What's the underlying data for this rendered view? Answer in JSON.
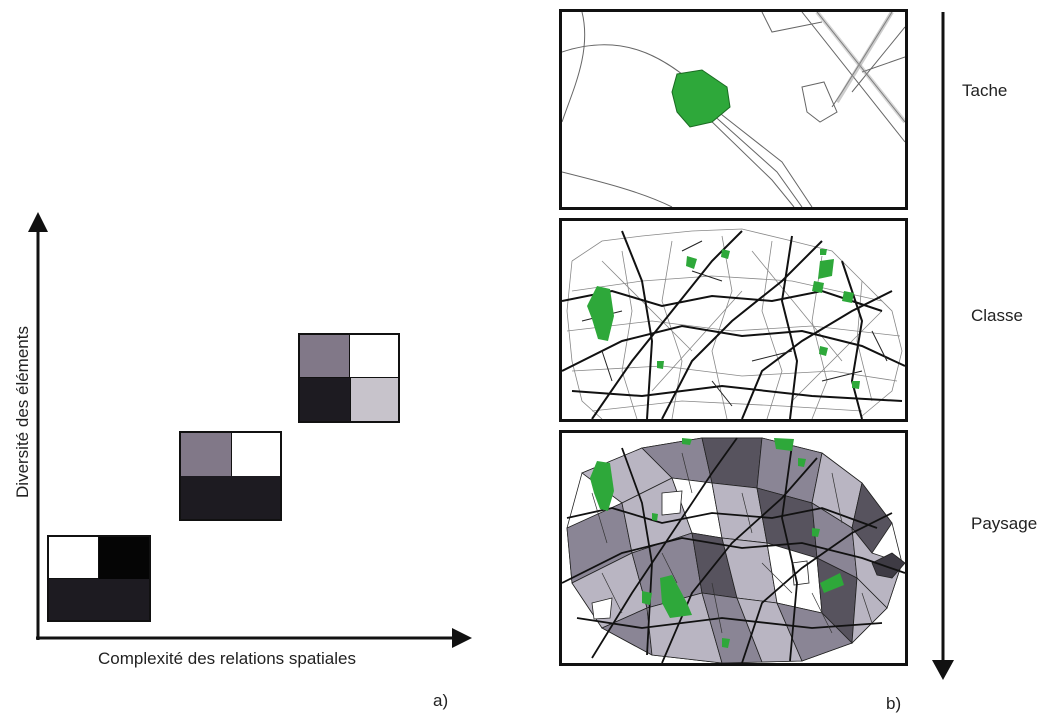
{
  "figure_a": {
    "x_axis_label": "Complexité des relations spatiales",
    "y_axis_label": "Diversité des éléments",
    "panel_label": "a)",
    "blocks": [
      {
        "name": "low",
        "cells": [
          "#ffffff",
          "#050505",
          "#1d1b21",
          "#1d1b21"
        ],
        "merged_bottom": true
      },
      {
        "name": "medium",
        "cells": [
          "#817888",
          "#ffffff",
          "#1d1b21",
          "#1d1b21"
        ],
        "merged_bottom": true
      },
      {
        "name": "high",
        "cells": [
          "#817888",
          "#ffffff",
          "#1d1b21",
          "#c7c3cb"
        ],
        "merged_bottom": false
      }
    ]
  },
  "figure_b": {
    "panel_label": "b)",
    "levels": [
      {
        "label": "Tache"
      },
      {
        "label": "Classe"
      },
      {
        "label": "Paysage"
      }
    ]
  },
  "colors": {
    "patch_green": "#2ea83a",
    "line_dark": "#111111",
    "gray_light": "#b9b5c2",
    "gray_mid": "#8a8595",
    "gray_dark": "#57535e"
  }
}
